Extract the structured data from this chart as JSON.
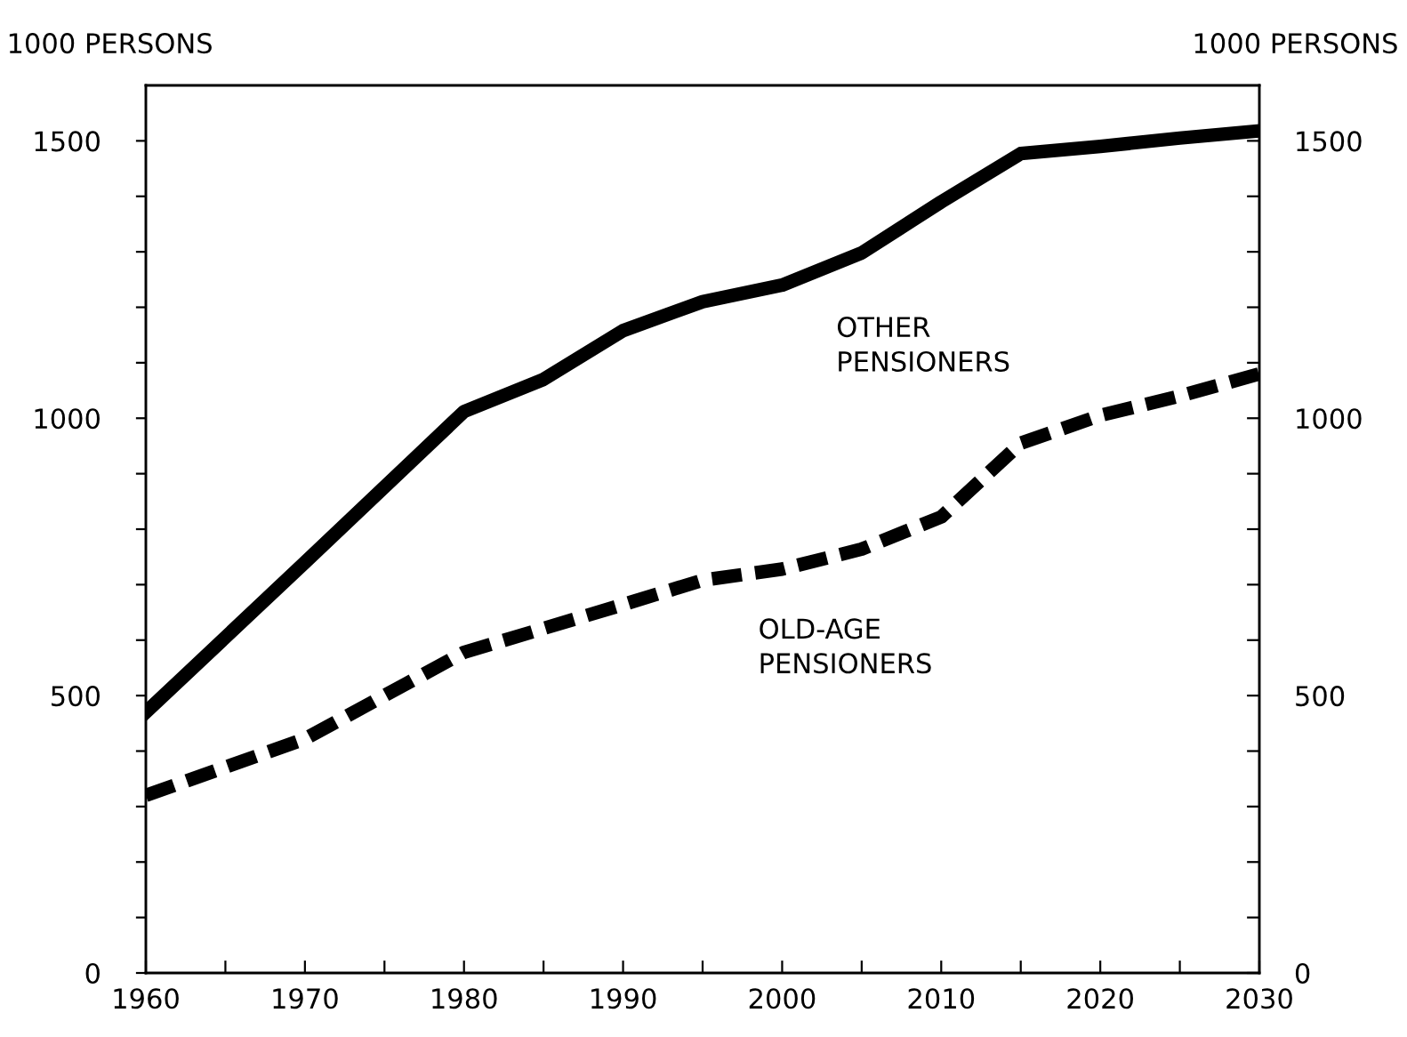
{
  "chart_data": {
    "type": "line",
    "ylabel": "1000 PERSONS",
    "y2label": "1000 PERSONS",
    "xlim": [
      1960,
      2030
    ],
    "xticks": [
      1960,
      {
        "value": 1965,
        "label": null
      },
      1970,
      {
        "value": 1975,
        "label": null
      },
      1980,
      {
        "value": 1985,
        "label": null
      },
      1990,
      {
        "value": 1995,
        "label": null
      },
      2000,
      {
        "value": 2005,
        "label": null
      },
      2010,
      {
        "value": 2015,
        "label": null
      },
      2020,
      {
        "value": 2025,
        "label": null
      },
      2030
    ],
    "ylim": [
      0,
      1600
    ],
    "yticks": [
      0,
      {
        "value": 100,
        "label": null
      },
      {
        "value": 200,
        "label": null
      },
      {
        "value": 300,
        "label": null
      },
      {
        "value": 400,
        "label": null
      },
      500,
      {
        "value": 600,
        "label": null
      },
      {
        "value": 700,
        "label": null
      },
      {
        "value": 800,
        "label": null
      },
      {
        "value": 900,
        "label": null
      },
      1000,
      {
        "value": 1100,
        "label": null
      },
      {
        "value": 1200,
        "label": null
      },
      {
        "value": 1300,
        "label": null
      },
      {
        "value": 1400,
        "label": null
      },
      1500
    ],
    "y2lim": [
      0,
      1600
    ],
    "y2ticks": [
      0,
      {
        "value": 100,
        "label": null
      },
      {
        "value": 200,
        "label": null
      },
      {
        "value": 300,
        "label": null
      },
      {
        "value": 400,
        "label": null
      },
      500,
      {
        "value": 600,
        "label": null
      },
      {
        "value": 700,
        "label": null
      },
      {
        "value": 800,
        "label": null
      },
      {
        "value": 900,
        "label": null
      },
      1000,
      {
        "value": 1100,
        "label": null
      },
      {
        "value": 1200,
        "label": null
      },
      {
        "value": 1300,
        "label": null
      },
      {
        "value": 1400,
        "label": null
      },
      1500
    ],
    "grid": false,
    "legend": false,
    "series": [
      {
        "name": "OTHER\nPENSIONERS",
        "color": "#000000",
        "line_style": "solid",
        "x": [
          1960,
          1970,
          1980,
          1985,
          1990,
          1995,
          2000,
          2005,
          2010,
          2015,
          2020,
          2025,
          2030
        ],
        "values": [
          470,
          740,
          1012,
          1070,
          1158,
          1210,
          1240,
          1298,
          1390,
          1477,
          1490,
          1505,
          1518
        ]
      },
      {
        "name": "OLD-AGE\nPENSIONERS",
        "color": "#000000",
        "line_style": "dashed",
        "x": [
          1960,
          1970,
          1980,
          1990,
          1995,
          2000,
          2005,
          2010,
          2015,
          2020,
          2025,
          2030
        ],
        "values": [
          320,
          422,
          578,
          664,
          708,
          728,
          764,
          822,
          955,
          1005,
          1040,
          1080
        ]
      }
    ]
  }
}
